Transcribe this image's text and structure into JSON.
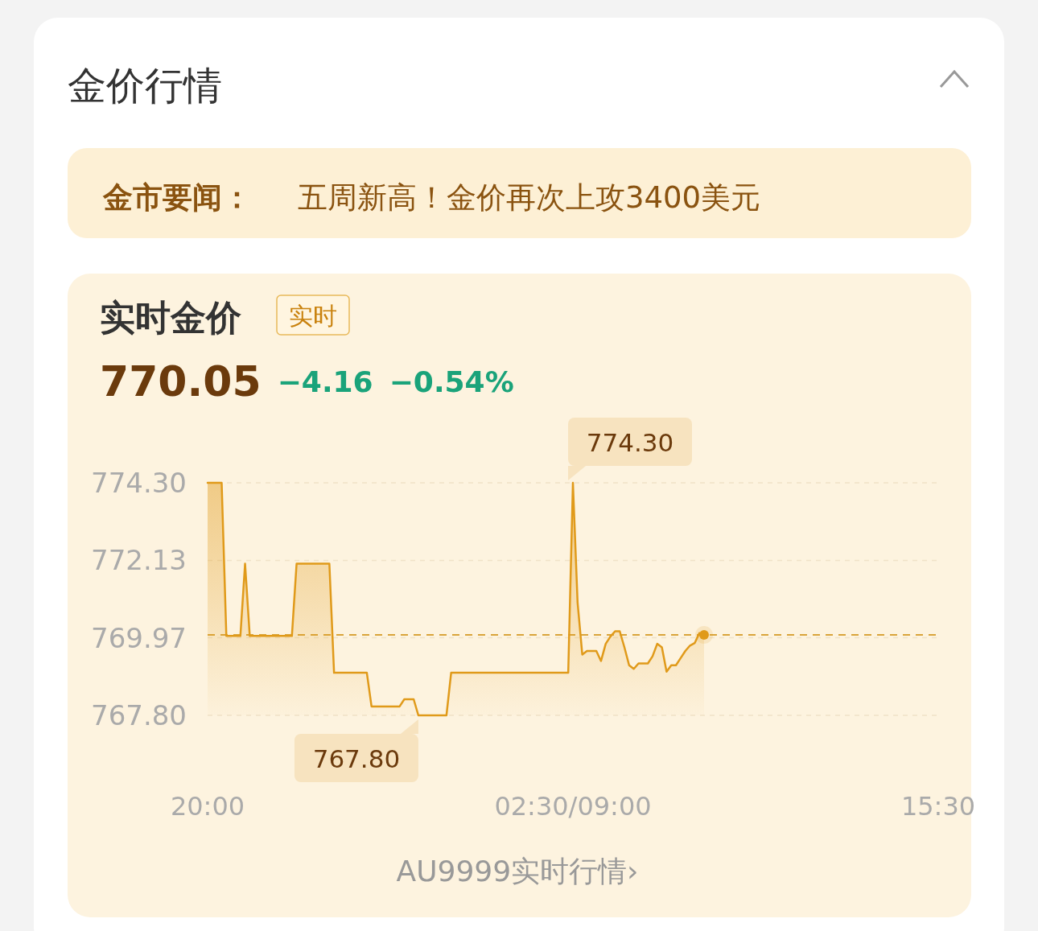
{
  "chart_data": {
    "type": "area",
    "title": "金价行情",
    "subtitle": "实时金价",
    "annotations": [
      "金市要闻：",
      "五周新高！金价再次上攻3400美元",
      "实时",
      "770.05",
      "−4.16",
      "−0.54%",
      "AU9999实时行情›",
      {
        "text": "774.30",
        "x": "02:30/09:00",
        "y": 774.3
      },
      {
        "text": "767.80",
        "y": 767.8
      }
    ],
    "categories": [
      "20:00",
      null,
      null,
      null,
      null,
      null,
      null,
      null,
      null,
      null,
      null,
      null,
      null,
      null,
      null,
      null,
      null,
      null,
      null,
      null,
      null,
      null,
      null,
      null,
      null,
      null,
      null,
      null,
      null,
      null,
      null,
      null,
      null,
      null,
      null,
      null,
      null,
      null,
      null,
      null,
      null,
      null,
      null,
      null,
      null,
      null,
      null,
      null,
      null,
      null,
      null,
      null,
      null,
      null,
      null,
      null,
      null,
      null,
      null,
      null,
      null,
      null,
      null,
      null,
      null,
      null,
      null,
      null,
      null,
      null,
      null,
      null,
      null,
      null,
      null,
      null,
      null,
      null,
      "02:30/09:00",
      null,
      null,
      null,
      null,
      null,
      null,
      null,
      null,
      null,
      null,
      null,
      null,
      null,
      null,
      null,
      null,
      null,
      null,
      null,
      null,
      null,
      null,
      null,
      null,
      null,
      null,
      null,
      null,
      null,
      null,
      null,
      null,
      null,
      null,
      null,
      null,
      null,
      null,
      null,
      null,
      null,
      null,
      null,
      null,
      null,
      null,
      null,
      null,
      null,
      null,
      null,
      null,
      null,
      null,
      null,
      null,
      null,
      null,
      null,
      null,
      null,
      null,
      null,
      null,
      null,
      null,
      null,
      null,
      null,
      null,
      null,
      null,
      null,
      null,
      null,
      null,
      null,
      "15:30"
    ],
    "series": [
      {
        "color": "#e09a1a",
        "values": [
          774.3,
          774.3,
          774.3,
          774.3,
          770.02,
          770.02,
          770.02,
          770.02,
          772.04,
          770.02,
          770.02,
          770.02,
          770.02,
          770.02,
          770.02,
          770.02,
          770.02,
          770.02,
          770.02,
          772.04,
          772.04,
          772.04,
          772.04,
          772.04,
          772.04,
          772.04,
          772.04,
          768.99,
          768.99,
          768.99,
          768.99,
          768.99,
          768.99,
          768.99,
          768.99,
          768.05,
          768.05,
          768.05,
          768.05,
          768.05,
          768.05,
          768.05,
          768.25,
          768.25,
          768.25,
          767.8,
          767.8,
          767.8,
          767.8,
          767.8,
          767.8,
          767.8,
          768.99,
          768.99,
          768.99,
          768.99,
          768.99,
          768.99,
          768.99,
          768.99,
          768.99,
          768.99,
          768.99,
          768.99,
          768.99,
          768.99,
          768.99,
          768.99,
          768.99,
          768.99,
          768.99,
          768.99,
          768.99,
          768.99,
          768.99,
          768.99,
          768.99,
          768.99,
          774.3,
          770.95,
          769.5,
          769.6,
          769.6,
          769.6,
          769.32,
          769.8,
          770.0,
          770.15,
          770.15,
          769.7,
          769.2,
          769.1,
          769.25,
          769.25,
          769.25,
          769.45,
          769.8,
          769.7,
          769.02,
          769.2,
          769.2,
          769.4,
          769.6,
          769.75,
          769.82,
          770.1,
          770.05,
          null,
          null,
          null,
          null,
          null,
          null,
          null,
          null,
          null,
          null,
          null,
          null,
          null,
          null,
          null,
          null,
          null,
          null,
          null,
          null,
          null,
          null,
          null,
          null,
          null,
          null,
          null,
          null,
          null,
          null,
          null,
          null,
          null,
          null,
          null,
          null,
          null,
          null,
          null,
          null,
          null,
          null,
          null,
          null,
          null,
          null,
          null,
          null,
          null,
          null
        ]
      }
    ],
    "ylim": [
      767.8,
      774.3
    ],
    "yticks": [
      {
        "value": 767.8,
        "label": "767.80"
      },
      {
        "value": 769.97,
        "label": "769.97"
      },
      {
        "value": 772.13,
        "label": "772.13"
      },
      {
        "value": 774.3,
        "label": "774.30"
      }
    ],
    "grid": "y",
    "ref_lines": [
      {
        "axis": "y",
        "value": 770.05,
        "color": "#d9a43a",
        "line_style": "dashed"
      }
    ]
  }
}
